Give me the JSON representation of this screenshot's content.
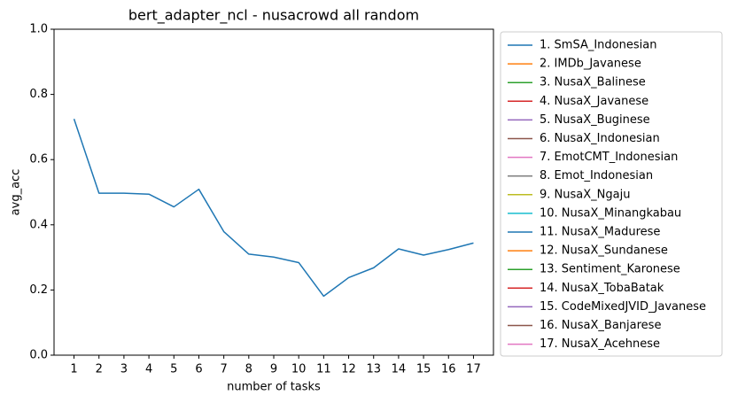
{
  "chart_data": {
    "type": "line",
    "title": "bert_adapter_ncl - nusacrowd all random",
    "xlabel": "number of tasks",
    "ylabel": "avg_acc",
    "x": [
      1,
      2,
      3,
      4,
      5,
      6,
      7,
      8,
      9,
      10,
      11,
      12,
      13,
      14,
      15,
      16,
      17
    ],
    "xlim": [
      0.2,
      17.8
    ],
    "xticks": [
      1,
      2,
      3,
      4,
      5,
      6,
      7,
      8,
      9,
      10,
      11,
      12,
      13,
      14,
      15,
      16,
      17
    ],
    "ylim": [
      0,
      1
    ],
    "yticks": [
      {
        "value": 0,
        "label": "0.0"
      },
      0.2,
      0.4,
      0.6,
      0.8,
      {
        "value": 1,
        "label": "1.0"
      }
    ],
    "legend": "outside-right",
    "series": [
      {
        "name": "1. SmSA_Indonesian",
        "color": "#1f77b4",
        "values": [
          0.725,
          0.497,
          0.497,
          0.494,
          0.455,
          0.509,
          0.379,
          0.31,
          0.301,
          0.284,
          0.181,
          0.238,
          0.268,
          0.326,
          0.307,
          0.324,
          0.344
        ]
      },
      {
        "name": "2. IMDb_Javanese",
        "color": "#ff7f0e",
        "values": [
          null,
          null,
          null,
          null,
          null,
          null,
          null,
          null,
          null,
          null,
          null,
          null,
          null,
          null,
          null,
          null,
          null
        ]
      },
      {
        "name": "3. NusaX_Balinese",
        "color": "#2ca02c",
        "values": [
          null,
          null,
          null,
          null,
          null,
          null,
          null,
          null,
          null,
          null,
          null,
          null,
          null,
          null,
          null,
          null,
          null
        ]
      },
      {
        "name": "4. NusaX_Javanese",
        "color": "#d62728",
        "values": [
          null,
          null,
          null,
          null,
          null,
          null,
          null,
          null,
          null,
          null,
          null,
          null,
          null,
          null,
          null,
          null,
          null
        ]
      },
      {
        "name": "5. NusaX_Buginese",
        "color": "#9467bd",
        "values": [
          null,
          null,
          null,
          null,
          null,
          null,
          null,
          null,
          null,
          null,
          null,
          null,
          null,
          null,
          null,
          null,
          null
        ]
      },
      {
        "name": "6. NusaX_Indonesian",
        "color": "#8c564b",
        "values": [
          null,
          null,
          null,
          null,
          null,
          null,
          null,
          null,
          null,
          null,
          null,
          null,
          null,
          null,
          null,
          null,
          null
        ]
      },
      {
        "name": "7. EmotCMT_Indonesian",
        "color": "#e377c2",
        "values": [
          null,
          null,
          null,
          null,
          null,
          null,
          null,
          null,
          null,
          null,
          null,
          null,
          null,
          null,
          null,
          null,
          null
        ]
      },
      {
        "name": "8. Emot_Indonesian",
        "color": "#7f7f7f",
        "values": [
          null,
          null,
          null,
          null,
          null,
          null,
          null,
          null,
          null,
          null,
          null,
          null,
          null,
          null,
          null,
          null,
          null
        ]
      },
      {
        "name": "9. NusaX_Ngaju",
        "color": "#bcbd22",
        "values": [
          null,
          null,
          null,
          null,
          null,
          null,
          null,
          null,
          null,
          null,
          null,
          null,
          null,
          null,
          null,
          null,
          null
        ]
      },
      {
        "name": "10. NusaX_Minangkabau",
        "color": "#17becf",
        "values": [
          null,
          null,
          null,
          null,
          null,
          null,
          null,
          null,
          null,
          null,
          null,
          null,
          null,
          null,
          null,
          null,
          null
        ]
      },
      {
        "name": "11. NusaX_Madurese",
        "color": "#1f77b4",
        "values": [
          null,
          null,
          null,
          null,
          null,
          null,
          null,
          null,
          null,
          null,
          null,
          null,
          null,
          null,
          null,
          null,
          null
        ]
      },
      {
        "name": "12. NusaX_Sundanese",
        "color": "#ff7f0e",
        "values": [
          null,
          null,
          null,
          null,
          null,
          null,
          null,
          null,
          null,
          null,
          null,
          null,
          null,
          null,
          null,
          null,
          null
        ]
      },
      {
        "name": "13. Sentiment_Karonese",
        "color": "#2ca02c",
        "values": [
          null,
          null,
          null,
          null,
          null,
          null,
          null,
          null,
          null,
          null,
          null,
          null,
          null,
          null,
          null,
          null,
          null
        ]
      },
      {
        "name": "14. NusaX_TobaBatak",
        "color": "#d62728",
        "values": [
          null,
          null,
          null,
          null,
          null,
          null,
          null,
          null,
          null,
          null,
          null,
          null,
          null,
          null,
          null,
          null,
          null
        ]
      },
      {
        "name": "15. CodeMixedJVID_Javanese",
        "color": "#9467bd",
        "values": [
          null,
          null,
          null,
          null,
          null,
          null,
          null,
          null,
          null,
          null,
          null,
          null,
          null,
          null,
          null,
          null,
          null
        ]
      },
      {
        "name": "16. NusaX_Banjarese",
        "color": "#8c564b",
        "values": [
          null,
          null,
          null,
          null,
          null,
          null,
          null,
          null,
          null,
          null,
          null,
          null,
          null,
          null,
          null,
          null,
          null
        ]
      },
      {
        "name": "17. NusaX_Acehnese",
        "color": "#e377c2",
        "values": [
          null,
          null,
          null,
          null,
          null,
          null,
          null,
          null,
          null,
          null,
          null,
          null,
          null,
          null,
          null,
          null,
          null
        ]
      }
    ]
  }
}
